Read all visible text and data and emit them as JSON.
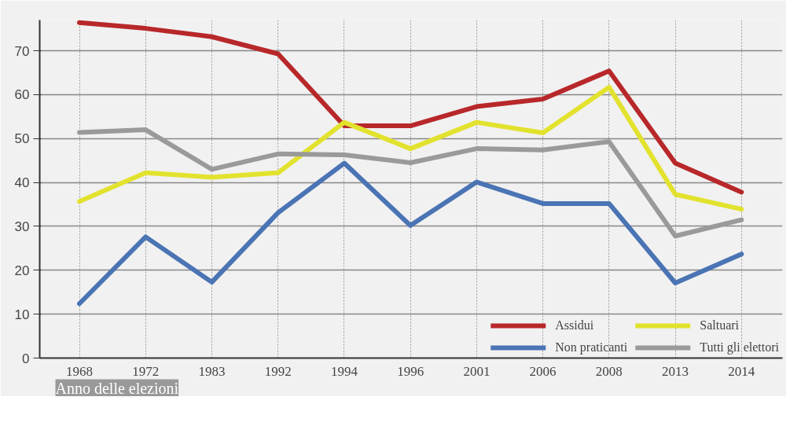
{
  "chart_data": {
    "type": "line",
    "xlabel": "Anno delle elezioni",
    "categories": [
      "1968",
      "1972",
      "1983",
      "1992",
      "1994",
      "1996",
      "2001",
      "2006",
      "2008",
      "2013",
      "2014"
    ],
    "series": [
      {
        "name": "Assidui",
        "color": "#b8282a",
        "values": [
          76.4,
          75.1,
          73.2,
          69.3,
          52.9,
          52.9,
          57.3,
          59.0,
          65.4,
          44.4,
          37.8
        ]
      },
      {
        "name": "Saltuari",
        "color": "#e2e22e",
        "values": [
          35.7,
          42.2,
          41.2,
          42.2,
          53.7,
          47.7,
          53.7,
          51.3,
          61.7,
          37.3,
          33.9
        ]
      },
      {
        "name": "Non praticanti",
        "color": "#4a74b4",
        "values": [
          12.4,
          27.6,
          17.3,
          33.1,
          44.4,
          30.2,
          40.1,
          35.2,
          35.2,
          17.1,
          23.7
        ]
      },
      {
        "name": "Tutti gli elettori",
        "color": "#9a9a9a",
        "values": [
          51.4,
          52.0,
          43.0,
          46.5,
          46.3,
          44.5,
          47.7,
          47.4,
          49.3,
          27.8,
          31.5
        ]
      }
    ],
    "ylim": [
      0,
      77
    ],
    "yticks": [
      0,
      10,
      20,
      30,
      40,
      50,
      60,
      70
    ],
    "grid": true,
    "legend": "bottom right",
    "line_style": "solid",
    "marker": "none"
  }
}
